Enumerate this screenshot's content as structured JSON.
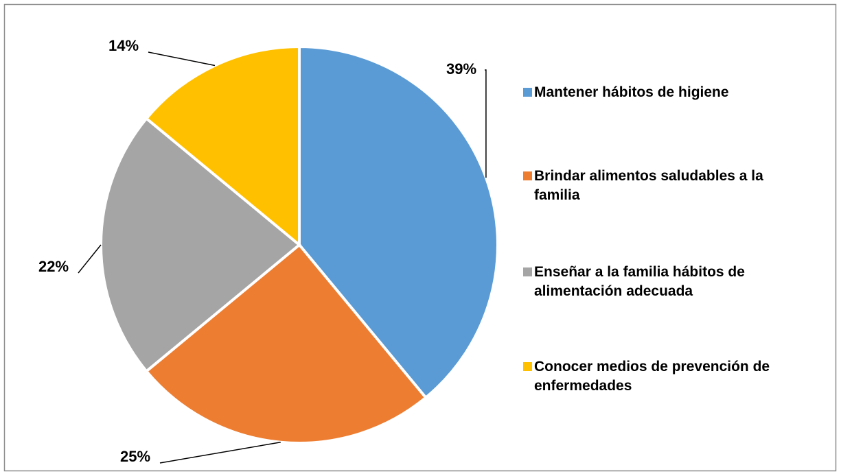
{
  "chart_data": {
    "type": "pie",
    "series": [
      {
        "name": "Mantener hábitos de higiene",
        "color": "#5b9bd5"
      },
      {
        "name": "Brindar alimentos saludables a la familia",
        "color": "#ed7d31"
      },
      {
        "name": "Enseñar a la familia hábitos de alimentación adecuada",
        "color": "#a5a5a5"
      },
      {
        "name": "Conocer medios de prevención de enfermedades",
        "color": "#ffc000"
      }
    ],
    "values": [
      39,
      25,
      22,
      14
    ],
    "value_labels": [
      "39%",
      "25%",
      "22%",
      "14%"
    ],
    "legend": "right"
  }
}
